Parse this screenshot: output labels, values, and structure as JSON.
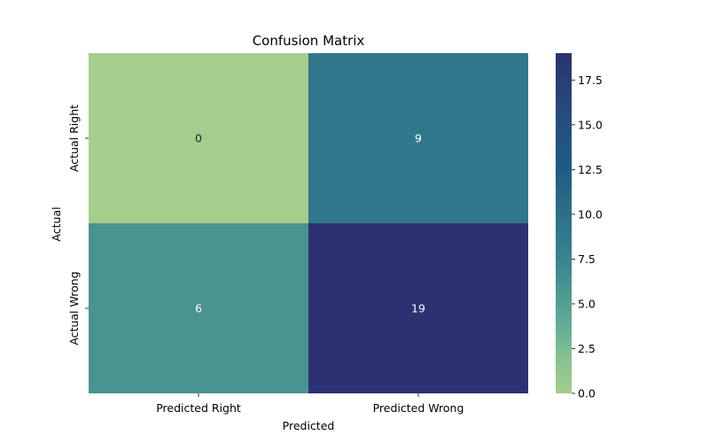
{
  "chart_data": {
    "type": "heatmap",
    "title": "Confusion Matrix",
    "xlabel": "Predicted",
    "ylabel": "Actual",
    "x_categories": [
      "Predicted Right",
      "Predicted Wrong"
    ],
    "y_categories": [
      "Actual Right",
      "Actual Wrong"
    ],
    "values": [
      [
        0,
        9
      ],
      [
        6,
        19
      ]
    ],
    "colorbar": {
      "range": [
        0,
        19
      ],
      "ticks": [
        "0.0",
        "2.5",
        "5.0",
        "7.5",
        "10.0",
        "12.5",
        "15.0",
        "17.5"
      ]
    },
    "colormap": {
      "name": "crest",
      "stops": [
        "#a5cd8c",
        "#82bf91",
        "#5da895",
        "#458f8f",
        "#347b8d",
        "#2a6b88",
        "#1f5a82",
        "#245081",
        "#284276",
        "#2c3172"
      ]
    },
    "cell_text_colors": [
      [
        "#262626",
        "#ffffff"
      ],
      [
        "#ffffff",
        "#ffffff"
      ]
    ]
  }
}
